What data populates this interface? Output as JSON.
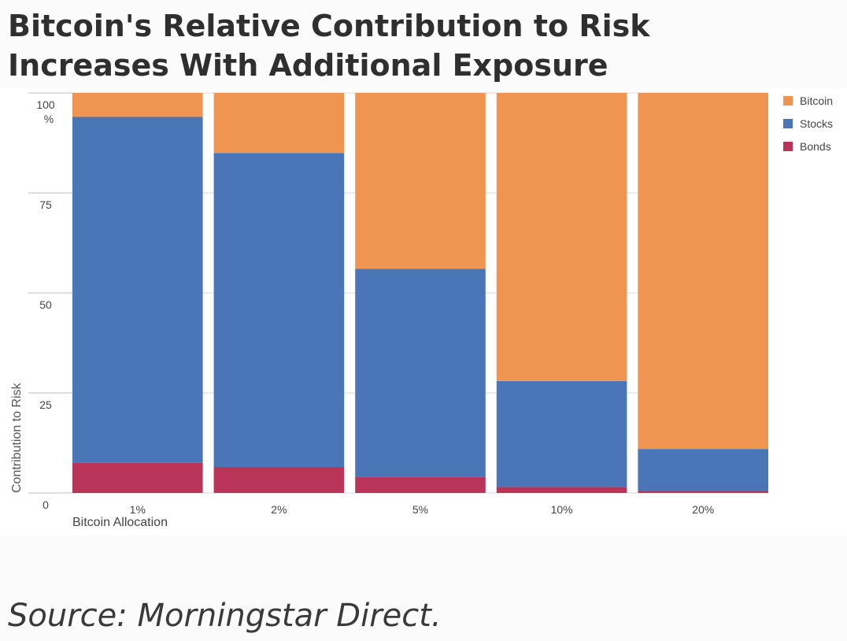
{
  "title_lines": [
    "Bitcoin's Relative Contribution to Risk",
    "Increases With Additional Exposure"
  ],
  "source": "Source: Morningstar Direct.",
  "colors": {
    "Bitcoin": "#ef9451",
    "Stocks": "#4a76b8",
    "Bonds": "#b93458",
    "grid": "#d9d9d9"
  },
  "chart_data": {
    "type": "bar",
    "stacked": true,
    "title": "Bitcoin's Relative Contribution to Risk Increases With Additional Exposure",
    "xlabel": "Bitcoin Allocation",
    "ylabel": "Contribution to Risk",
    "y_unit": "%",
    "ylim": [
      0,
      100
    ],
    "yticks": [
      0,
      25,
      50,
      75,
      100
    ],
    "categories": [
      "1%",
      "2%",
      "5%",
      "10%",
      "20%"
    ],
    "series": [
      {
        "name": "Bonds",
        "values": [
          7.5,
          6.5,
          4,
          1.5,
          0.5
        ]
      },
      {
        "name": "Stocks",
        "values": [
          86.5,
          78.5,
          52,
          26.5,
          10.5
        ]
      },
      {
        "name": "Bitcoin",
        "values": [
          6,
          15,
          44,
          72,
          89
        ]
      }
    ],
    "legend": {
      "position": "right",
      "order": [
        "Bitcoin",
        "Stocks",
        "Bonds"
      ]
    },
    "grid": true
  }
}
